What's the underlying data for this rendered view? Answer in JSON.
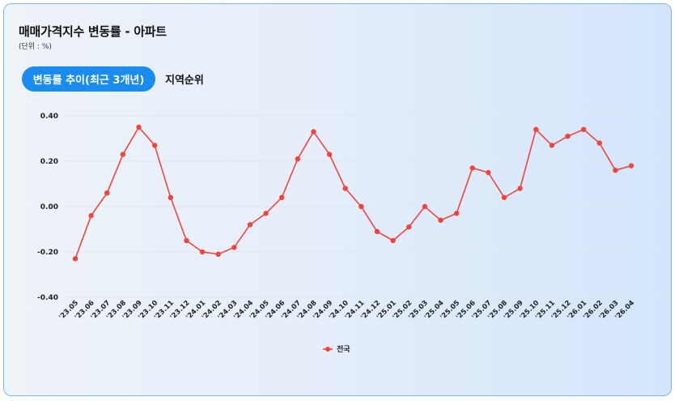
{
  "header": {
    "title": "매매가격지수 변동률 - 아파트",
    "unit": "(단위 : %)"
  },
  "tabs": [
    {
      "label": "변동률 추이(최근 3개년)",
      "active": true
    },
    {
      "label": "지역순위",
      "active": false
    }
  ],
  "colors": {
    "series": "#f0443c",
    "accent": "#1a8cf0"
  },
  "chart_data": {
    "type": "line",
    "ylim": [
      -0.4,
      0.4
    ],
    "yticks": [
      "0.40",
      "0.20",
      "0.00",
      "-0.20",
      "-0.40"
    ],
    "ytick_values": [
      0.4,
      0.2,
      0.0,
      -0.2,
      -0.4
    ],
    "grid": true,
    "legend_position": "bottom-center",
    "x": [
      "'23.05",
      "'23.06",
      "'23.07",
      "'23.08",
      "'23.09",
      "'23.10",
      "'23.11",
      "'23.12",
      "'24.01",
      "'24.02",
      "'24.03",
      "'24.04",
      "'24.05",
      "'24.06",
      "'24.07",
      "'24.08",
      "'24.09",
      "'24.10",
      "'24.11",
      "'24.12",
      "'25.01",
      "'25.02",
      "'25.03",
      "'25.04",
      "'25.05",
      "'25.06",
      "'25.07",
      "'25.08",
      "'25.09",
      "'25.10",
      "'25.11",
      "'25.12",
      "'26.01",
      "'26.02",
      "'26.03",
      "'26.04"
    ],
    "series": [
      {
        "name": "전국",
        "values": [
          -0.23,
          -0.04,
          0.06,
          0.23,
          0.35,
          0.27,
          0.04,
          -0.15,
          -0.2,
          -0.21,
          -0.18,
          -0.08,
          -0.03,
          0.04,
          0.21,
          0.33,
          0.23,
          0.08,
          0.0,
          -0.11,
          -0.15,
          -0.09,
          0.0,
          -0.06,
          -0.03,
          0.17,
          0.15,
          0.04,
          0.08,
          0.34,
          0.27,
          0.31,
          0.34,
          0.28,
          0.16,
          0.18
        ]
      }
    ]
  }
}
